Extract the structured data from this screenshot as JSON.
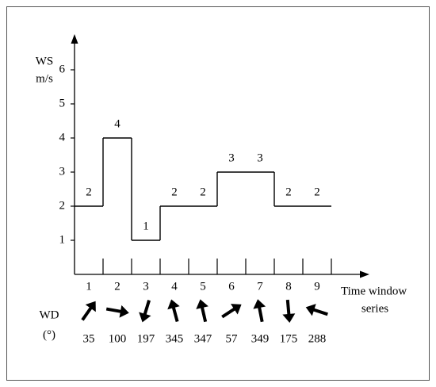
{
  "chart_data": {
    "type": "step",
    "ylabel": [
      "WS",
      "m/s"
    ],
    "xlabel": [
      "Time window",
      "series"
    ],
    "direction_label": [
      "WD",
      "(°)"
    ],
    "categories": [
      "1",
      "2",
      "3",
      "4",
      "5",
      "6",
      "7",
      "8",
      "9"
    ],
    "series": [
      {
        "color": "#000000",
        "values": [
          2,
          4,
          1,
          2,
          2,
          3,
          3,
          2,
          2
        ]
      }
    ],
    "directions": [
      35,
      100,
      197,
      345,
      347,
      57,
      349,
      175,
      288
    ],
    "ylim": [
      0,
      7
    ],
    "yticks": [
      1,
      2,
      3,
      4,
      5,
      6
    ]
  }
}
